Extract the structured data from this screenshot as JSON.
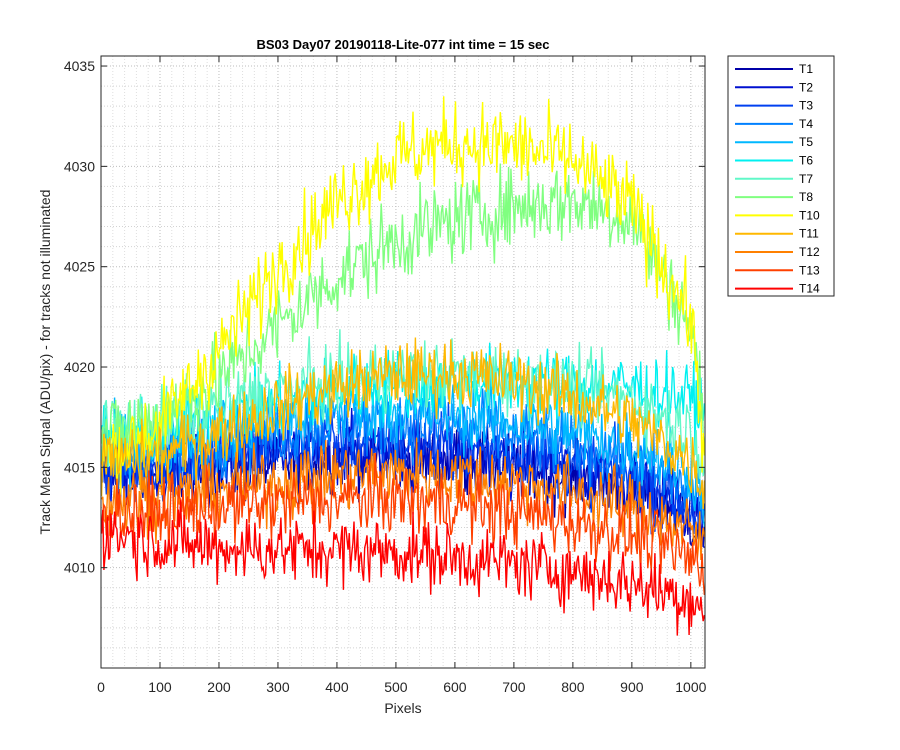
{
  "chart_data": {
    "type": "line",
    "title": "BS03 Day07 20190118-Lite-077 int time = 15 sec",
    "xlabel": "Pixels",
    "ylabel": "Track Mean Signal (ADU/pix) - for tracks not illuminated",
    "xlim": [
      0,
      1024
    ],
    "ylim": [
      4005,
      4035.5
    ],
    "xticks": [
      0,
      100,
      200,
      300,
      400,
      500,
      600,
      700,
      800,
      900,
      1000
    ],
    "yticks": [
      4010,
      4015,
      4020,
      4025,
      4030,
      4035
    ],
    "grid": "dotted major and minor",
    "legend_position": "outside-top-right",
    "series": [
      {
        "name": "T1",
        "color": "#0000a8",
        "x": [
          0,
          100,
          200,
          300,
          400,
          500,
          600,
          700,
          800,
          900,
          1000,
          1024
        ],
        "y": [
          4014.5,
          4014.5,
          4014.8,
          4015.2,
          4015.5,
          4015.5,
          4015.2,
          4015.0,
          4014.5,
          4014.0,
          4012.5,
          4011.5
        ]
      },
      {
        "name": "T2",
        "color": "#0010d0",
        "x": [
          0,
          100,
          200,
          300,
          400,
          500,
          600,
          700,
          800,
          900,
          1000,
          1024
        ],
        "y": [
          4014.8,
          4014.8,
          4015.2,
          4015.6,
          4015.8,
          4015.8,
          4015.6,
          4015.3,
          4014.8,
          4014.3,
          4012.8,
          4011.8
        ]
      },
      {
        "name": "T3",
        "color": "#0040f0",
        "x": [
          0,
          100,
          200,
          300,
          400,
          500,
          600,
          700,
          800,
          900,
          1000,
          1024
        ],
        "y": [
          4015.0,
          4015.0,
          4015.5,
          4016.0,
          4016.2,
          4016.2,
          4016.0,
          4015.7,
          4015.2,
          4014.6,
          4013.0,
          4012.0
        ]
      },
      {
        "name": "T4",
        "color": "#0080ff",
        "x": [
          0,
          100,
          200,
          300,
          400,
          500,
          600,
          700,
          800,
          900,
          1000,
          1024
        ],
        "y": [
          4015.5,
          4015.6,
          4016.2,
          4016.8,
          4017.2,
          4017.3,
          4017.0,
          4016.6,
          4016.0,
          4015.4,
          4013.8,
          4012.8
        ]
      },
      {
        "name": "T5",
        "color": "#00b8ff",
        "x": [
          0,
          100,
          200,
          300,
          400,
          500,
          600,
          700,
          800,
          900,
          1000,
          1024
        ],
        "y": [
          4016.0,
          4016.2,
          4016.8,
          4017.4,
          4017.8,
          4017.9,
          4017.7,
          4017.3,
          4016.8,
          4016.2,
          4014.8,
          4013.5
        ]
      },
      {
        "name": "T6",
        "color": "#00f0f0",
        "x": [
          0,
          100,
          200,
          300,
          400,
          500,
          600,
          700,
          800,
          900,
          1000,
          1024
        ],
        "y": [
          4016.5,
          4016.7,
          4017.5,
          4018.3,
          4018.8,
          4019.2,
          4019.3,
          4019.3,
          4019.2,
          4019.0,
          4018.5,
          4017.5
        ]
      },
      {
        "name": "T7",
        "color": "#60f8c8",
        "x": [
          0,
          100,
          200,
          300,
          400,
          500,
          600,
          700,
          800,
          900,
          1000,
          1024
        ],
        "y": [
          4017.0,
          4017.2,
          4018.0,
          4018.8,
          4019.3,
          4019.6,
          4019.6,
          4019.4,
          4019.0,
          4018.4,
          4016.8,
          4015.5
        ]
      },
      {
        "name": "T8",
        "color": "#80ff80",
        "x": [
          0,
          100,
          200,
          300,
          400,
          500,
          600,
          700,
          800,
          900,
          1000,
          1024
        ],
        "y": [
          4016.5,
          4017.5,
          4019.5,
          4022.0,
          4024.5,
          4026.3,
          4027.3,
          4028.0,
          4028.3,
          4027.5,
          4022.0,
          4017.0
        ]
      },
      {
        "name": "T10",
        "color": "#ffff00",
        "x": [
          0,
          100,
          200,
          300,
          400,
          500,
          600,
          700,
          800,
          900,
          1000,
          1024
        ],
        "y": [
          4015.5,
          4017.0,
          4020.8,
          4025.0,
          4028.3,
          4030.5,
          4031.2,
          4031.0,
          4030.3,
          4028.0,
          4022.5,
          4015.5
        ]
      },
      {
        "name": "T11",
        "color": "#ffb800",
        "x": [
          0,
          100,
          200,
          300,
          400,
          500,
          600,
          700,
          800,
          900,
          1000,
          1024
        ],
        "y": [
          4015.2,
          4015.5,
          4016.8,
          4018.0,
          4019.0,
          4019.6,
          4019.7,
          4019.3,
          4018.5,
          4017.3,
          4015.3,
          4014.0
        ]
      },
      {
        "name": "T12",
        "color": "#ff8000",
        "x": [
          0,
          100,
          200,
          300,
          400,
          500,
          600,
          700,
          800,
          900,
          1000,
          1024
        ],
        "y": [
          4013.3,
          4013.5,
          4013.9,
          4014.3,
          4014.6,
          4014.7,
          4014.6,
          4014.3,
          4013.8,
          4013.0,
          4011.8,
          4011.0
        ]
      },
      {
        "name": "T13",
        "color": "#ff4000",
        "x": [
          0,
          100,
          200,
          300,
          400,
          500,
          600,
          700,
          800,
          900,
          1000,
          1024
        ],
        "y": [
          4012.8,
          4012.8,
          4013.0,
          4013.2,
          4013.4,
          4013.4,
          4013.2,
          4012.8,
          4012.3,
          4011.6,
          4010.5,
          4009.8
        ]
      },
      {
        "name": "T14",
        "color": "#ff0000",
        "x": [
          0,
          100,
          200,
          300,
          400,
          500,
          600,
          700,
          800,
          900,
          1000,
          1024
        ],
        "y": [
          4011.8,
          4011.3,
          4011.0,
          4010.9,
          4010.9,
          4010.8,
          4010.5,
          4010.2,
          4009.8,
          4009.2,
          4008.5,
          4007.8
        ]
      }
    ]
  }
}
